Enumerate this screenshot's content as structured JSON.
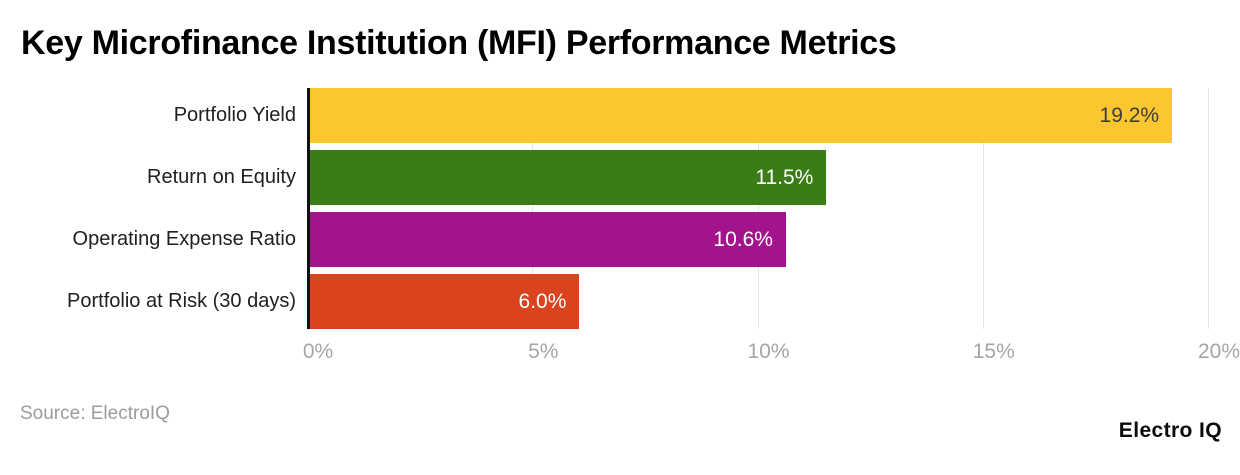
{
  "chart_data": {
    "type": "bar",
    "orientation": "horizontal",
    "title": "Key Microfinance Institution (MFI) Performance Metrics",
    "categories": [
      "Portfolio Yield",
      "Return on Equity",
      "Operating Expense Ratio",
      "Portfolio at Risk (30 days)"
    ],
    "values": [
      19.2,
      11.5,
      10.6,
      6.0
    ],
    "value_labels": [
      "19.2%",
      "11.5%",
      "10.6%",
      "6.0%"
    ],
    "bar_colors": [
      "#FBC62F",
      "#3A7D17",
      "#A3138B",
      "#D9441F"
    ],
    "value_label_colors": [
      "#3d3d3d",
      "#ffffff",
      "#ffffff",
      "#ffffff"
    ],
    "xlabel": "",
    "ylabel": "",
    "xlim": [
      0,
      20
    ],
    "x_ticks": [
      "0%",
      "5%",
      "10%",
      "15%",
      "20%"
    ],
    "grid": true
  },
  "footer": {
    "source": "Source: ElectroIQ",
    "brand": "Electro IQ"
  }
}
